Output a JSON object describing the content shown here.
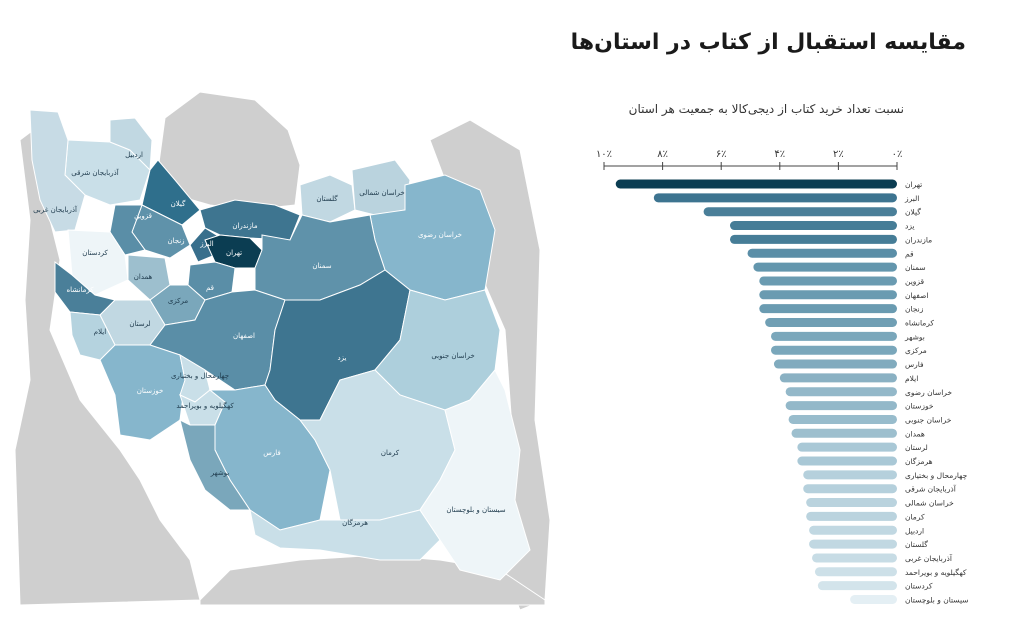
{
  "title": "مقایسه استقبال از کتاب در استان‌ها",
  "chart_data": {
    "type": "bar",
    "orientation": "horizontal",
    "title": "مقایسه استقبال از کتاب در استان‌ها",
    "subtitle": "نسبت تعداد خرید کتاب از دیجی‌کالا به جمعیت هر استان",
    "x_ticks": [
      "۱۰٪",
      "۸٪",
      "۶٪",
      "۴٪",
      "۲٪",
      "۰٪"
    ],
    "xlim": [
      0,
      10
    ],
    "axis_direction": "right-to-left",
    "categories": [
      "تهران",
      "البرز",
      "گیلان",
      "یزد",
      "مازندران",
      "قم",
      "سمنان",
      "قزوین",
      "اصفهان",
      "زنجان",
      "کرمانشاه",
      "بوشهر",
      "مرکزی",
      "فارس",
      "ایلام",
      "خراسان رضوی",
      "خوزستان",
      "خراسان جنوبی",
      "همدان",
      "لرستان",
      "هرمزگان",
      "چهارمحال و بختیاری",
      "آذربایجان شرقی",
      "خراسان شمالی",
      "کرمان",
      "اردبیل",
      "گلستان",
      "آذربایجان غربی",
      "کهگیلویه و بویراحمد",
      "کردستان",
      "سیستان و بلوچستان"
    ],
    "values": [
      9.6,
      8.3,
      6.6,
      5.7,
      5.7,
      5.1,
      4.9,
      4.7,
      4.7,
      4.7,
      4.5,
      4.3,
      4.3,
      4.2,
      4.0,
      3.8,
      3.8,
      3.7,
      3.6,
      3.4,
      3.4,
      3.2,
      3.2,
      3.1,
      3.1,
      3.0,
      3.0,
      2.9,
      2.8,
      2.7,
      1.6
    ],
    "colors": [
      "#0b3d52",
      "#3d7490",
      "#4a7f99",
      "#467d97",
      "#467d97",
      "#5a8ea7",
      "#6396ad",
      "#6a9bb1",
      "#6a9bb1",
      "#6a9bb1",
      "#709fb4",
      "#7aa7bb",
      "#7aa7bb",
      "#81abbe",
      "#8ab1c3",
      "#93b8c9",
      "#93b8c9",
      "#98bccc",
      "#9dbfce",
      "#a9c8d6",
      "#a9c8d6",
      "#b5d0dc",
      "#b5d0dc",
      "#bad3de",
      "#bad3de",
      "#c1d8e2",
      "#c1d8e2",
      "#c7dce5",
      "#cde0e8",
      "#d3e4eb",
      "#e4eff4"
    ]
  },
  "map": {
    "provinces": [
      {
        "name": "آذربایجان شرقی",
        "color": "#c9dfe8",
        "light": false
      },
      {
        "name": "آذربایجان غربی",
        "color": "#c7dbe5",
        "light": false
      },
      {
        "name": "اردبیل",
        "color": "#c1d8e2",
        "light": false
      },
      {
        "name": "گیلان",
        "color": "#2f6f8c",
        "light": true
      },
      {
        "name": "زنجان",
        "color": "#5f92aa",
        "light": true
      },
      {
        "name": "قزوین",
        "color": "#5a8ea7",
        "light": true
      },
      {
        "name": "مازندران",
        "color": "#3e7590",
        "light": true
      },
      {
        "name": "گلستان",
        "color": "#c1d8e2",
        "light": false
      },
      {
        "name": "خراسان شمالی",
        "color": "#bad3de",
        "light": false
      },
      {
        "name": "خراسان رضوی",
        "color": "#86b6cc",
        "light": true
      },
      {
        "name": "کردستان",
        "color": "#eef5f8",
        "light": false
      },
      {
        "name": "همدان",
        "color": "#9dbfce",
        "light": false
      },
      {
        "name": "البرز",
        "color": "#386f8c",
        "light": true
      },
      {
        "name": "تهران",
        "color": "#0b3d52",
        "light": true
      },
      {
        "name": "قم",
        "color": "#5a8ea7",
        "light": true
      },
      {
        "name": "سمنان",
        "color": "#5f92aa",
        "light": true
      },
      {
        "name": "کرمانشاه",
        "color": "#4a7f99",
        "light": true
      },
      {
        "name": "مرکزی",
        "color": "#7aa7bb",
        "light": false
      },
      {
        "name": "لرستان",
        "color": "#c1d8e2",
        "light": false
      },
      {
        "name": "ایلام",
        "color": "#b5d3df",
        "light": false
      },
      {
        "name": "اصفهان",
        "color": "#5a8ea7",
        "light": true
      },
      {
        "name": "یزد",
        "color": "#3e7590",
        "light": true
      },
      {
        "name": "خراسان جنوبی",
        "color": "#adcfdc",
        "light": false
      },
      {
        "name": "خوزستان",
        "color": "#86b6cc",
        "light": true
      },
      {
        "name": "چهارمحال و بختیاری",
        "color": "#c9dfe8",
        "light": false
      },
      {
        "name": "کهگیلویه و بویراحمد",
        "color": "#c9dfe8",
        "light": false
      },
      {
        "name": "فارس",
        "color": "#86b6cc",
        "light": true
      },
      {
        "name": "بوشهر",
        "color": "#7aa7bb",
        "light": false
      },
      {
        "name": "کرمان",
        "color": "#c9dfe8",
        "light": false
      },
      {
        "name": "هرمزگان",
        "color": "#c9dfe8",
        "light": false
      },
      {
        "name": "سیستان و بلوچستان",
        "color": "#eef5f8",
        "light": false
      }
    ],
    "neighbor_color": "#cfcfcf"
  }
}
